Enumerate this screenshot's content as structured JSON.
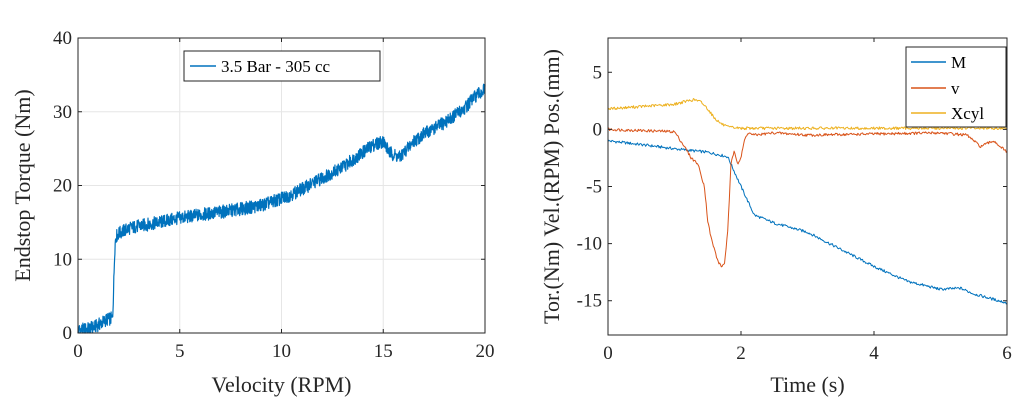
{
  "chart_data": [
    {
      "type": "line",
      "title": "",
      "xlabel": "Velocity (RPM)",
      "ylabel": "Endstop Torque (Nm)",
      "xlim": [
        0,
        20
      ],
      "ylim": [
        0,
        40
      ],
      "xticks": [
        "0",
        "5",
        "10",
        "15",
        "20"
      ],
      "yticks": [
        "0",
        "10",
        "20",
        "30",
        "40"
      ],
      "grid": true,
      "legend_position": "top-center",
      "series": [
        {
          "name": "3.5 Bar - 305 cc",
          "color": "#0072BD",
          "x": [
            0,
            0.4,
            0.8,
            1.0,
            1.4,
            1.7,
            1.75,
            1.8,
            1.85,
            2.0,
            2.5,
            3,
            4,
            5,
            6,
            7,
            8,
            9,
            10,
            10.5,
            11,
            12,
            13,
            14,
            14.5,
            15,
            15.3,
            15.8,
            16.5,
            17,
            18,
            19,
            19.5,
            20
          ],
          "values": [
            0.4,
            0.5,
            0.8,
            1.1,
            1.8,
            2.0,
            6.0,
            11.0,
            13.0,
            13.5,
            14.2,
            14.5,
            15.0,
            15.6,
            16.0,
            16.4,
            16.8,
            17.3,
            18.2,
            18.8,
            19.5,
            21.0,
            22.5,
            24.5,
            25.5,
            26.0,
            24.5,
            23.8,
            26.0,
            27.0,
            28.5,
            30.5,
            32.0,
            33.0
          ]
        }
      ]
    },
    {
      "type": "line",
      "title": "",
      "xlabel": "Time (s)",
      "ylabel": "Tor.(Nm) Vel.(RPM) Pos.(mm)",
      "xlim": [
        0,
        6
      ],
      "ylim": [
        -18,
        8
      ],
      "xticks": [
        "0",
        "2",
        "4",
        "6"
      ],
      "yticks": [
        "5",
        "0",
        "-5",
        "-10",
        "-15"
      ],
      "grid": false,
      "legend_position": "top-right",
      "series": [
        {
          "name": "M",
          "color": "#0072BD",
          "x": [
            0,
            0.3,
            0.6,
            1.0,
            1.5,
            1.8,
            2.0,
            2.2,
            2.5,
            3.0,
            3.5,
            4.0,
            4.5,
            5.0,
            5.3,
            5.5,
            6.0
          ],
          "values": [
            -1.0,
            -1.2,
            -1.4,
            -1.7,
            -2.0,
            -2.4,
            -5.0,
            -7.5,
            -8.2,
            -9.0,
            -10.5,
            -12.0,
            -13.3,
            -14.0,
            -13.9,
            -14.4,
            -15.2
          ]
        },
        {
          "name": "v",
          "color": "#D95319",
          "x": [
            0,
            0.5,
            1.0,
            1.15,
            1.25,
            1.35,
            1.45,
            1.5,
            1.55,
            1.6,
            1.65,
            1.7,
            1.75,
            1.8,
            1.85,
            1.9,
            1.95,
            2.0,
            2.05,
            2.1,
            2.2,
            2.5,
            3.0,
            4.0,
            5.0,
            5.4,
            5.6,
            5.8,
            6.0
          ],
          "values": [
            0.0,
            -0.1,
            -0.2,
            -1.5,
            -2.5,
            -3.0,
            -5.0,
            -8.0,
            -9.5,
            -10.5,
            -11.5,
            -12.0,
            -11.8,
            -9.0,
            -3.0,
            -1.8,
            -3.0,
            -2.5,
            -1.0,
            -0.3,
            -0.5,
            -0.3,
            -0.5,
            -0.4,
            -0.3,
            -0.5,
            -1.5,
            -1.0,
            -2.0
          ]
        },
        {
          "name": "Xcyl",
          "color": "#EDB120",
          "x": [
            0,
            0.5,
            1.0,
            1.2,
            1.3,
            1.4,
            1.5,
            1.6,
            1.7,
            1.8,
            2.0,
            4.0,
            6.0
          ],
          "values": [
            1.8,
            2.0,
            2.2,
            2.5,
            2.6,
            2.4,
            1.8,
            1.0,
            0.5,
            0.2,
            0.1,
            0.1,
            0.1
          ]
        }
      ]
    }
  ]
}
